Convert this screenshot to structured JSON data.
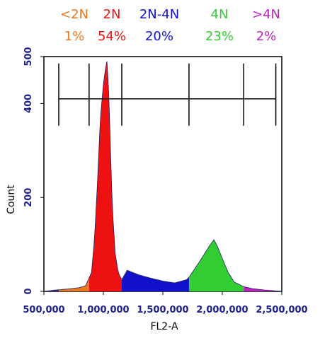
{
  "chart_data": {
    "type": "area",
    "xlabel": "FL2-A",
    "ylabel": "Count",
    "xlim": [
      500000,
      2500000
    ],
    "ylim": [
      0,
      500
    ],
    "x_ticks": [
      {
        "value": 500000,
        "label": "500,000"
      },
      {
        "value": 1000000,
        "label": "1,000,000"
      },
      {
        "value": 1500000,
        "label": "1,500,000"
      },
      {
        "value": 2000000,
        "label": "2,000,000"
      },
      {
        "value": 2500000,
        "label": "2,500,000"
      }
    ],
    "y_ticks": [
      {
        "value": 0,
        "label": "0"
      },
      {
        "value": 200,
        "label": "200"
      },
      {
        "value": 400,
        "label": "400"
      },
      {
        "value": 500,
        "label": "500"
      }
    ],
    "gate_y": 410,
    "gate_boundaries": [
      625000,
      880000,
      1155000,
      1720000,
      2180000,
      2450000
    ],
    "regions": [
      {
        "label": "<2N",
        "percent": "1%",
        "color": "#e87820",
        "x_range": [
          625000,
          880000
        ]
      },
      {
        "label": "2N",
        "percent": "54%",
        "color": "#ee1111",
        "x_range": [
          880000,
          1155000
        ]
      },
      {
        "label": "2N-4N",
        "percent": "20%",
        "color": "#1111cc",
        "x_range": [
          1155000,
          1720000
        ]
      },
      {
        "label": "4N",
        "percent": "23%",
        "color": "#33cc33",
        "x_range": [
          1720000,
          2180000
        ]
      },
      {
        "label": ">4N",
        "percent": "2%",
        "color": "#bb22bb",
        "x_range": [
          2180000,
          2450000
        ]
      }
    ],
    "histogram": {
      "x": [
        500000,
        600000,
        700000,
        800000,
        850000,
        900000,
        925000,
        950000,
        975000,
        1000000,
        1015000,
        1030000,
        1045000,
        1060000,
        1075000,
        1100000,
        1125000,
        1155000,
        1200000,
        1300000,
        1400000,
        1500000,
        1600000,
        1700000,
        1720000,
        1800000,
        1850000,
        1900000,
        1930000,
        1960000,
        2000000,
        2050000,
        2100000,
        2180000,
        2250000,
        2350000,
        2450000,
        2500000
      ],
      "y": [
        0,
        3,
        5,
        8,
        12,
        40,
        110,
        230,
        370,
        440,
        470,
        490,
        430,
        300,
        180,
        80,
        40,
        25,
        45,
        35,
        28,
        22,
        18,
        25,
        30,
        60,
        80,
        100,
        110,
        95,
        70,
        40,
        20,
        10,
        6,
        3,
        1,
        0
      ]
    }
  }
}
